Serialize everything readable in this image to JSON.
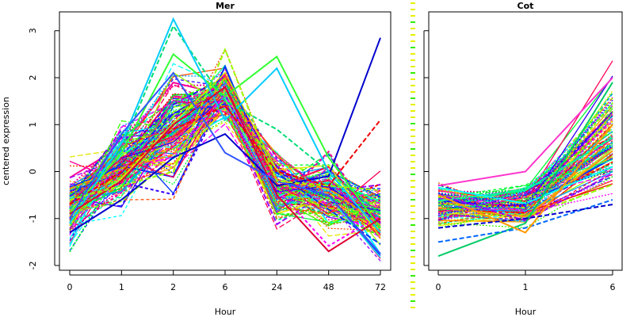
{
  "figure": {
    "ylabel": "centered expression",
    "divider_color": "#e6f000",
    "palette": [
      "#ff0000",
      "#ff4d00",
      "#ff9900",
      "#e5e500",
      "#99ff00",
      "#33ff00",
      "#00ff33",
      "#00ff99",
      "#00ffff",
      "#0099ff",
      "#0033ff",
      "#3300ff",
      "#9900ff",
      "#ff00ff",
      "#ff0099",
      "#ff0055"
    ]
  },
  "chart_data": [
    {
      "type": "line",
      "title": "Mer",
      "xlabel": "Hour",
      "ylabel": "centered expression",
      "x_categories": [
        "0",
        "1",
        "2",
        "6",
        "24",
        "48",
        "72"
      ],
      "ylim": [
        -2,
        3.3
      ],
      "yticks": [
        -2,
        -1,
        0,
        1,
        2,
        3
      ],
      "grid": false,
      "mean_profile": [
        -0.75,
        0.15,
        0.9,
        1.7,
        -0.3,
        -0.5,
        -1.0
      ],
      "spread": [
        0.33,
        0.42,
        0.55,
        0.3,
        0.38,
        0.33,
        0.35
      ],
      "series_count": 150,
      "highlight_series": [
        {
          "color": "#0000cc",
          "values": [
            -1.3,
            -0.6,
            0.3,
            0.8,
            -0.3,
            -0.1,
            2.85
          ]
        },
        {
          "color": "#00dd77",
          "values": [
            -0.8,
            0.5,
            3.1,
            1.5,
            0.9,
            0.0,
            -0.9
          ]
        },
        {
          "color": "#33ff33",
          "values": [
            -0.9,
            0.4,
            2.5,
            1.6,
            2.45,
            0.3,
            -1.2
          ]
        },
        {
          "color": "#00ccff",
          "values": [
            -1.1,
            0.6,
            3.25,
            1.1,
            2.2,
            0.0,
            -1.3
          ]
        },
        {
          "color": "#ee0000",
          "values": [
            -0.7,
            0.0,
            0.9,
            1.4,
            0.0,
            -0.3,
            1.1
          ]
        },
        {
          "color": "#dd0033",
          "values": [
            -0.9,
            -0.2,
            1.0,
            1.8,
            -0.5,
            -1.7,
            -1.0
          ]
        },
        {
          "color": "#3355ff",
          "values": [
            -1.0,
            0.8,
            2.1,
            0.4,
            -0.2,
            -0.5,
            -1.75
          ]
        },
        {
          "color": "#99ff00",
          "values": [
            -0.6,
            -0.3,
            0.0,
            2.6,
            -0.2,
            -0.3,
            -0.4
          ]
        }
      ]
    },
    {
      "type": "line",
      "title": "Cot",
      "xlabel": "Hour",
      "x_categories": [
        "0",
        "1",
        "6"
      ],
      "ylim": [
        -2,
        3.3
      ],
      "yticks": [
        -2,
        -1,
        0,
        1,
        2,
        3
      ],
      "grid": false,
      "mean_profile": [
        -0.75,
        -0.7,
        0.8
      ],
      "spread": [
        0.22,
        0.2,
        0.55
      ],
      "series_count": 110,
      "highlight_series": [
        {
          "color": "#00cc66",
          "values": [
            -1.8,
            -1.1,
            1.9
          ]
        },
        {
          "color": "#0066ff",
          "values": [
            -1.5,
            -1.2,
            -0.6
          ]
        },
        {
          "color": "#ff33cc",
          "values": [
            -0.3,
            0.0,
            2.0
          ]
        },
        {
          "color": "#ff9900",
          "values": [
            -0.5,
            -1.3,
            1.0
          ]
        },
        {
          "color": "#0000cc",
          "values": [
            -1.2,
            -1.0,
            -0.7
          ]
        }
      ]
    }
  ]
}
